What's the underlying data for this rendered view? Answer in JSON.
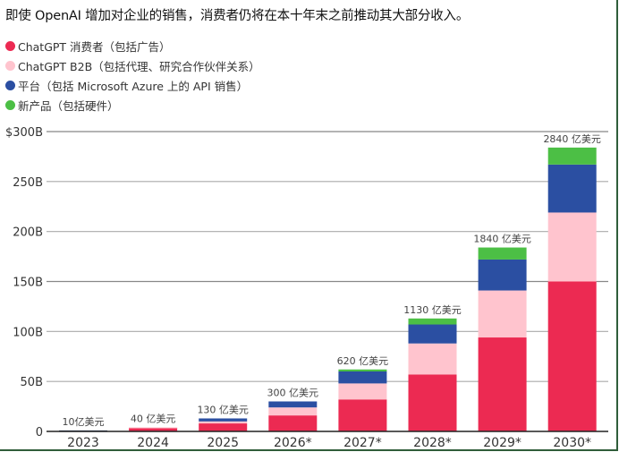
{
  "title": "即使 OpenAI 增加对企业的销售，消费者仍将在本十年末之前推动其大部分收入。",
  "legend": [
    {
      "label": "ChatGPT 消费者（包括广告）",
      "color": "#EC2A52",
      "icon": "circle-dot-icon"
    },
    {
      "label": "ChatGPT B2B（包括代理、研究合作伙伴关系）",
      "color": "#FFC4CE",
      "icon": "circle-dot-icon"
    },
    {
      "label": "平台（包括 Microsoft Azure 上的 API 销售）",
      "color": "#2B4FA2",
      "icon": "circle-dot-icon"
    },
    {
      "label": "新产品（包括硬件）",
      "color": "#4CBF45",
      "icon": "circle-dot-icon"
    }
  ],
  "chart_data": {
    "type": "bar",
    "stacked": true,
    "title": "即使 OpenAI 增加对企业的销售，消费者仍将在本十年末之前推动其大部分收入。",
    "xlabel": "",
    "ylabel": "",
    "ylim": [
      0,
      300
    ],
    "yticks": [
      0,
      50,
      100,
      150,
      200,
      250,
      300
    ],
    "ytick_labels": [
      "0",
      "50B",
      "100B",
      "150B",
      "200B",
      "250B",
      "$300B"
    ],
    "grid": true,
    "legend_position": "top-left",
    "categories": [
      "2023",
      "2024",
      "2025",
      "2026*",
      "2027*",
      "2028*",
      "2029*",
      "2030*"
    ],
    "series": [
      {
        "name": "ChatGPT 消费者（包括广告）",
        "color": "#EC2A52",
        "values": [
          1,
          3.7,
          8,
          16,
          32,
          57,
          94,
          150
        ]
      },
      {
        "name": "ChatGPT B2B（包括代理、研究合作伙伴关系）",
        "color": "#FFC4CE",
        "values": [
          0,
          0.3,
          2,
          8,
          16,
          31,
          47,
          69
        ]
      },
      {
        "name": "平台（包括 Microsoft Azure 上的 API 销售）",
        "color": "#2B4FA2",
        "values": [
          0,
          0,
          3,
          6,
          12,
          19,
          31,
          48
        ]
      },
      {
        "name": "新产品（包括硬件）",
        "color": "#4CBF45",
        "values": [
          0,
          0,
          0,
          0,
          2,
          6,
          12,
          17
        ]
      }
    ],
    "totals": [
      1,
      4,
      13,
      30,
      62,
      113,
      184,
      284
    ],
    "total_labels": [
      "10亿美元",
      "40 亿美元",
      "130 亿美元",
      "300 亿美元",
      "620 亿美元",
      "1130 亿美元",
      "1840 亿美元",
      "2840 亿美元"
    ]
  }
}
